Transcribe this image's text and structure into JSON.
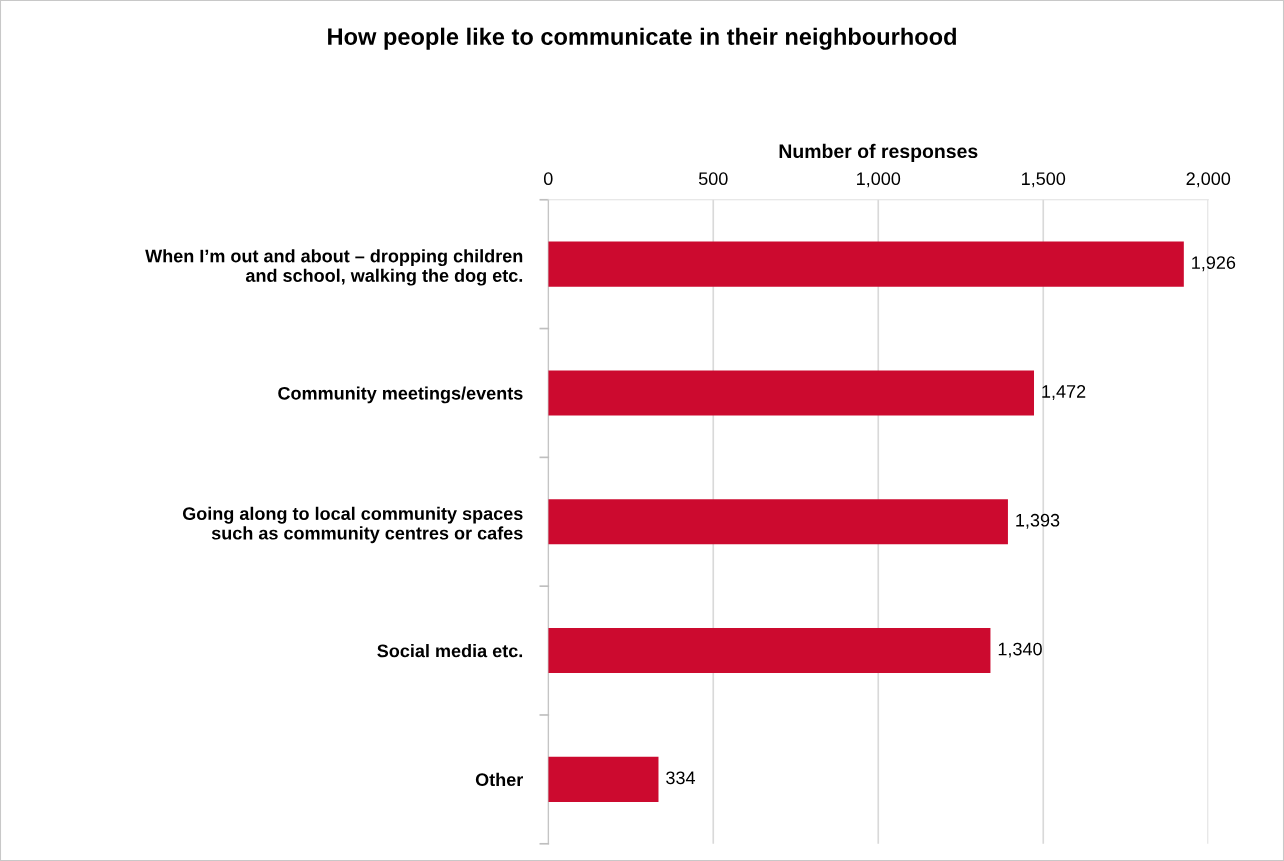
{
  "chart_data": {
    "type": "bar",
    "orientation": "horizontal",
    "title": "How people like to communicate in their neighbourhood",
    "xlabel": "Number of responses",
    "categories": [
      "When I’m out and about – dropping children\nand school, walking the dog etc.",
      "Community meetings/events",
      "Going along to local community spaces\nsuch as community centres or cafes",
      "Social media etc.",
      "Other"
    ],
    "values": [
      1926,
      1472,
      1393,
      1340,
      334
    ],
    "value_labels": [
      "1,926",
      "1,472",
      "1,393",
      "1,340",
      "334"
    ],
    "color": "#cc0a2f",
    "xlim": [
      0,
      2000
    ],
    "xticks": [
      0,
      {
        "value": 500,
        "label": "500"
      },
      {
        "value": 1000,
        "label": "1,000"
      },
      {
        "value": 1500,
        "label": "1,500"
      },
      {
        "value": 2000,
        "label": "2,000"
      }
    ],
    "grid": "x"
  }
}
